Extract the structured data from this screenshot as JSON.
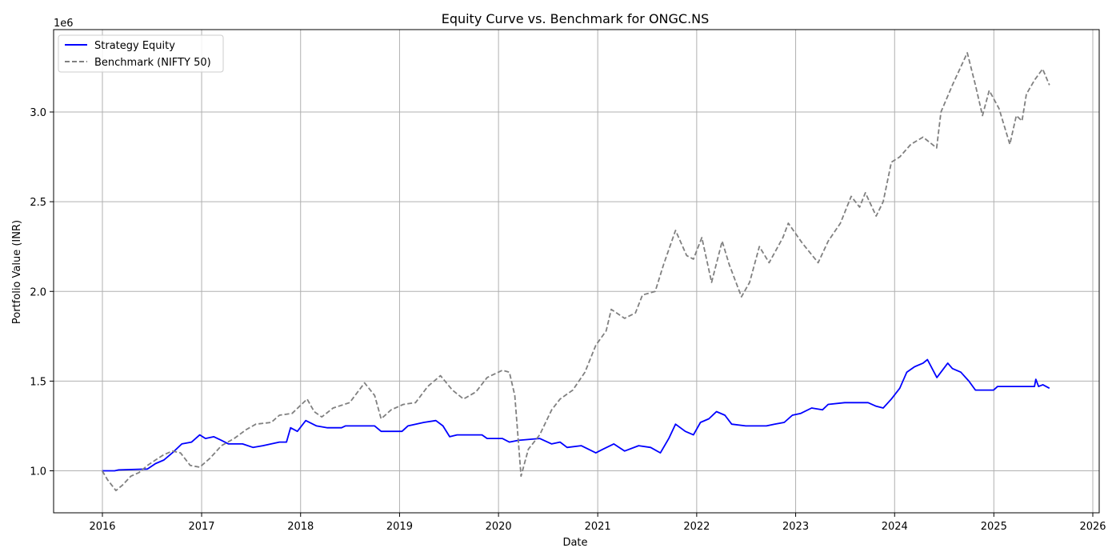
{
  "chart_data": {
    "type": "line",
    "title": "Equity Curve vs. Benchmark for ONGC.NS",
    "xlabel": "Date",
    "ylabel": "Portfolio Value (INR)",
    "y_multiplier_label": "1e6",
    "x_ticks": [
      "2016",
      "2017",
      "2018",
      "2019",
      "2020",
      "2021",
      "2022",
      "2023",
      "2024",
      "2025",
      "2026"
    ],
    "y_ticks": [
      "1.0",
      "1.5",
      "2.0",
      "2.5",
      "3.0"
    ],
    "grid": true,
    "legend_position": "upper-left",
    "series": [
      {
        "name": "Strategy Equity",
        "color": "#0000ff",
        "style": "solid",
        "points": [
          [
            "2015-12-31",
            1.0
          ],
          [
            "2016-02-15",
            1.0
          ],
          [
            "2016-03-01",
            1.005
          ],
          [
            "2016-06-15",
            1.01
          ],
          [
            "2016-07-15",
            1.04
          ],
          [
            "2016-08-15",
            1.06
          ],
          [
            "2016-09-15",
            1.1
          ],
          [
            "2016-10-20",
            1.15
          ],
          [
            "2016-11-25",
            1.16
          ],
          [
            "2016-12-25",
            1.2
          ],
          [
            "2017-01-15",
            1.18
          ],
          [
            "2017-02-15",
            1.19
          ],
          [
            "2017-03-15",
            1.17
          ],
          [
            "2017-04-10",
            1.15
          ],
          [
            "2017-06-01",
            1.15
          ],
          [
            "2017-07-10",
            1.13
          ],
          [
            "2017-08-15",
            1.14
          ],
          [
            "2017-10-15",
            1.16
          ],
          [
            "2017-11-10",
            1.16
          ],
          [
            "2017-11-25",
            1.24
          ],
          [
            "2017-12-20",
            1.22
          ],
          [
            "2018-01-20",
            1.28
          ],
          [
            "2018-03-01",
            1.25
          ],
          [
            "2018-04-10",
            1.24
          ],
          [
            "2018-06-01",
            1.24
          ],
          [
            "2018-06-15",
            1.25
          ],
          [
            "2018-10-01",
            1.25
          ],
          [
            "2018-10-25",
            1.22
          ],
          [
            "2019-01-10",
            1.22
          ],
          [
            "2019-02-01",
            1.25
          ],
          [
            "2019-04-01",
            1.27
          ],
          [
            "2019-05-15",
            1.28
          ],
          [
            "2019-06-10",
            1.25
          ],
          [
            "2019-07-05",
            1.19
          ],
          [
            "2019-08-01",
            1.2
          ],
          [
            "2019-11-01",
            1.2
          ],
          [
            "2019-11-20",
            1.18
          ],
          [
            "2020-01-15",
            1.18
          ],
          [
            "2020-02-10",
            1.16
          ],
          [
            "2020-03-15",
            1.17
          ],
          [
            "2020-06-01",
            1.18
          ],
          [
            "2020-07-15",
            1.15
          ],
          [
            "2020-08-15",
            1.16
          ],
          [
            "2020-09-10",
            1.13
          ],
          [
            "2020-11-01",
            1.14
          ],
          [
            "2020-12-25",
            1.1
          ],
          [
            "2021-01-20",
            1.12
          ],
          [
            "2021-03-01",
            1.15
          ],
          [
            "2021-04-10",
            1.11
          ],
          [
            "2021-06-01",
            1.14
          ],
          [
            "2021-07-15",
            1.13
          ],
          [
            "2021-08-20",
            1.1
          ],
          [
            "2021-09-20",
            1.18
          ],
          [
            "2021-10-15",
            1.26
          ],
          [
            "2021-11-20",
            1.22
          ],
          [
            "2021-12-20",
            1.2
          ],
          [
            "2022-01-15",
            1.27
          ],
          [
            "2022-02-15",
            1.29
          ],
          [
            "2022-03-15",
            1.33
          ],
          [
            "2022-04-15",
            1.31
          ],
          [
            "2022-05-10",
            1.26
          ],
          [
            "2022-07-01",
            1.25
          ],
          [
            "2022-09-15",
            1.25
          ],
          [
            "2022-10-15",
            1.26
          ],
          [
            "2022-11-20",
            1.27
          ],
          [
            "2022-12-20",
            1.31
          ],
          [
            "2023-01-20",
            1.32
          ],
          [
            "2023-03-01",
            1.35
          ],
          [
            "2023-04-10",
            1.34
          ],
          [
            "2023-05-01",
            1.37
          ],
          [
            "2023-07-01",
            1.38
          ],
          [
            "2023-09-25",
            1.38
          ],
          [
            "2023-10-25",
            1.36
          ],
          [
            "2023-11-20",
            1.35
          ],
          [
            "2023-12-20",
            1.4
          ],
          [
            "2024-01-20",
            1.46
          ],
          [
            "2024-02-15",
            1.55
          ],
          [
            "2024-03-15",
            1.58
          ],
          [
            "2024-04-15",
            1.6
          ],
          [
            "2024-05-01",
            1.62
          ],
          [
            "2024-06-05",
            1.52
          ],
          [
            "2024-06-25",
            1.56
          ],
          [
            "2024-07-15",
            1.6
          ],
          [
            "2024-08-01",
            1.57
          ],
          [
            "2024-09-01",
            1.55
          ],
          [
            "2024-10-01",
            1.5
          ],
          [
            "2024-10-25",
            1.45
          ],
          [
            "2024-12-31",
            1.45
          ],
          [
            "2025-01-15",
            1.47
          ],
          [
            "2025-05-31",
            1.47
          ],
          [
            "2025-06-05",
            1.51
          ],
          [
            "2025-06-15",
            1.47
          ],
          [
            "2025-07-01",
            1.48
          ],
          [
            "2025-07-25",
            1.46
          ]
        ]
      },
      {
        "name": "Benchmark (NIFTY 50)",
        "color": "#808080",
        "style": "dashed",
        "points": [
          [
            "2015-12-31",
            1.0
          ],
          [
            "2016-01-20",
            0.95
          ],
          [
            "2016-02-20",
            0.89
          ],
          [
            "2016-03-15",
            0.92
          ],
          [
            "2016-04-15",
            0.97
          ],
          [
            "2016-05-15",
            0.99
          ],
          [
            "2016-06-15",
            1.03
          ],
          [
            "2016-07-15",
            1.06
          ],
          [
            "2016-08-15",
            1.09
          ],
          [
            "2016-09-15",
            1.11
          ],
          [
            "2016-10-15",
            1.1
          ],
          [
            "2016-11-20",
            1.03
          ],
          [
            "2016-12-25",
            1.02
          ],
          [
            "2017-02-01",
            1.07
          ],
          [
            "2017-03-15",
            1.14
          ],
          [
            "2017-05-01",
            1.18
          ],
          [
            "2017-06-15",
            1.23
          ],
          [
            "2017-07-20",
            1.26
          ],
          [
            "2017-09-15",
            1.27
          ],
          [
            "2017-10-15",
            1.31
          ],
          [
            "2017-12-01",
            1.32
          ],
          [
            "2018-01-25",
            1.4
          ],
          [
            "2018-02-20",
            1.33
          ],
          [
            "2018-03-20",
            1.3
          ],
          [
            "2018-05-01",
            1.35
          ],
          [
            "2018-07-01",
            1.38
          ],
          [
            "2018-08-25",
            1.49
          ],
          [
            "2018-10-01",
            1.42
          ],
          [
            "2018-10-25",
            1.29
          ],
          [
            "2018-12-01",
            1.34
          ],
          [
            "2019-01-15",
            1.37
          ],
          [
            "2019-03-01",
            1.38
          ],
          [
            "2019-04-15",
            1.47
          ],
          [
            "2019-06-01",
            1.53
          ],
          [
            "2019-07-15",
            1.45
          ],
          [
            "2019-08-25",
            1.4
          ],
          [
            "2019-10-10",
            1.44
          ],
          [
            "2019-11-20",
            1.52
          ],
          [
            "2020-01-15",
            1.56
          ],
          [
            "2020-02-10",
            1.55
          ],
          [
            "2020-03-01",
            1.42
          ],
          [
            "2020-03-24",
            0.97
          ],
          [
            "2020-04-20",
            1.12
          ],
          [
            "2020-06-01",
            1.2
          ],
          [
            "2020-07-15",
            1.34
          ],
          [
            "2020-08-15",
            1.4
          ],
          [
            "2020-10-01",
            1.45
          ],
          [
            "2020-11-15",
            1.55
          ],
          [
            "2020-12-25",
            1.7
          ],
          [
            "2021-02-01",
            1.78
          ],
          [
            "2021-02-20",
            1.9
          ],
          [
            "2021-04-10",
            1.85
          ],
          [
            "2021-05-20",
            1.88
          ],
          [
            "2021-06-15",
            1.98
          ],
          [
            "2021-08-01",
            2.0
          ],
          [
            "2021-09-01",
            2.15
          ],
          [
            "2021-10-15",
            2.34
          ],
          [
            "2021-11-25",
            2.2
          ],
          [
            "2021-12-20",
            2.18
          ],
          [
            "2022-01-20",
            2.3
          ],
          [
            "2022-02-25",
            2.05
          ],
          [
            "2022-04-05",
            2.28
          ],
          [
            "2022-05-01",
            2.15
          ],
          [
            "2022-06-15",
            1.97
          ],
          [
            "2022-07-15",
            2.05
          ],
          [
            "2022-08-20",
            2.25
          ],
          [
            "2022-09-25",
            2.16
          ],
          [
            "2022-11-15",
            2.3
          ],
          [
            "2022-12-05",
            2.38
          ],
          [
            "2023-01-25",
            2.27
          ],
          [
            "2023-03-25",
            2.16
          ],
          [
            "2023-05-01",
            2.28
          ],
          [
            "2023-06-15",
            2.38
          ],
          [
            "2023-07-25",
            2.53
          ],
          [
            "2023-08-25",
            2.47
          ],
          [
            "2023-09-15",
            2.55
          ],
          [
            "2023-10-25",
            2.42
          ],
          [
            "2023-11-20",
            2.5
          ],
          [
            "2023-12-20",
            2.72
          ],
          [
            "2024-01-20",
            2.75
          ],
          [
            "2024-03-01",
            2.82
          ],
          [
            "2024-04-15",
            2.86
          ],
          [
            "2024-06-04",
            2.8
          ],
          [
            "2024-06-20",
            3.0
          ],
          [
            "2024-08-01",
            3.15
          ],
          [
            "2024-09-25",
            3.33
          ],
          [
            "2024-10-25",
            3.15
          ],
          [
            "2024-11-20",
            2.98
          ],
          [
            "2024-12-15",
            3.12
          ],
          [
            "2025-01-20",
            3.02
          ],
          [
            "2025-03-01",
            2.82
          ],
          [
            "2025-03-25",
            2.98
          ],
          [
            "2025-04-15",
            2.95
          ],
          [
            "2025-05-01",
            3.1
          ],
          [
            "2025-06-01",
            3.18
          ],
          [
            "2025-06-30",
            3.24
          ],
          [
            "2025-07-25",
            3.15
          ]
        ]
      }
    ]
  }
}
